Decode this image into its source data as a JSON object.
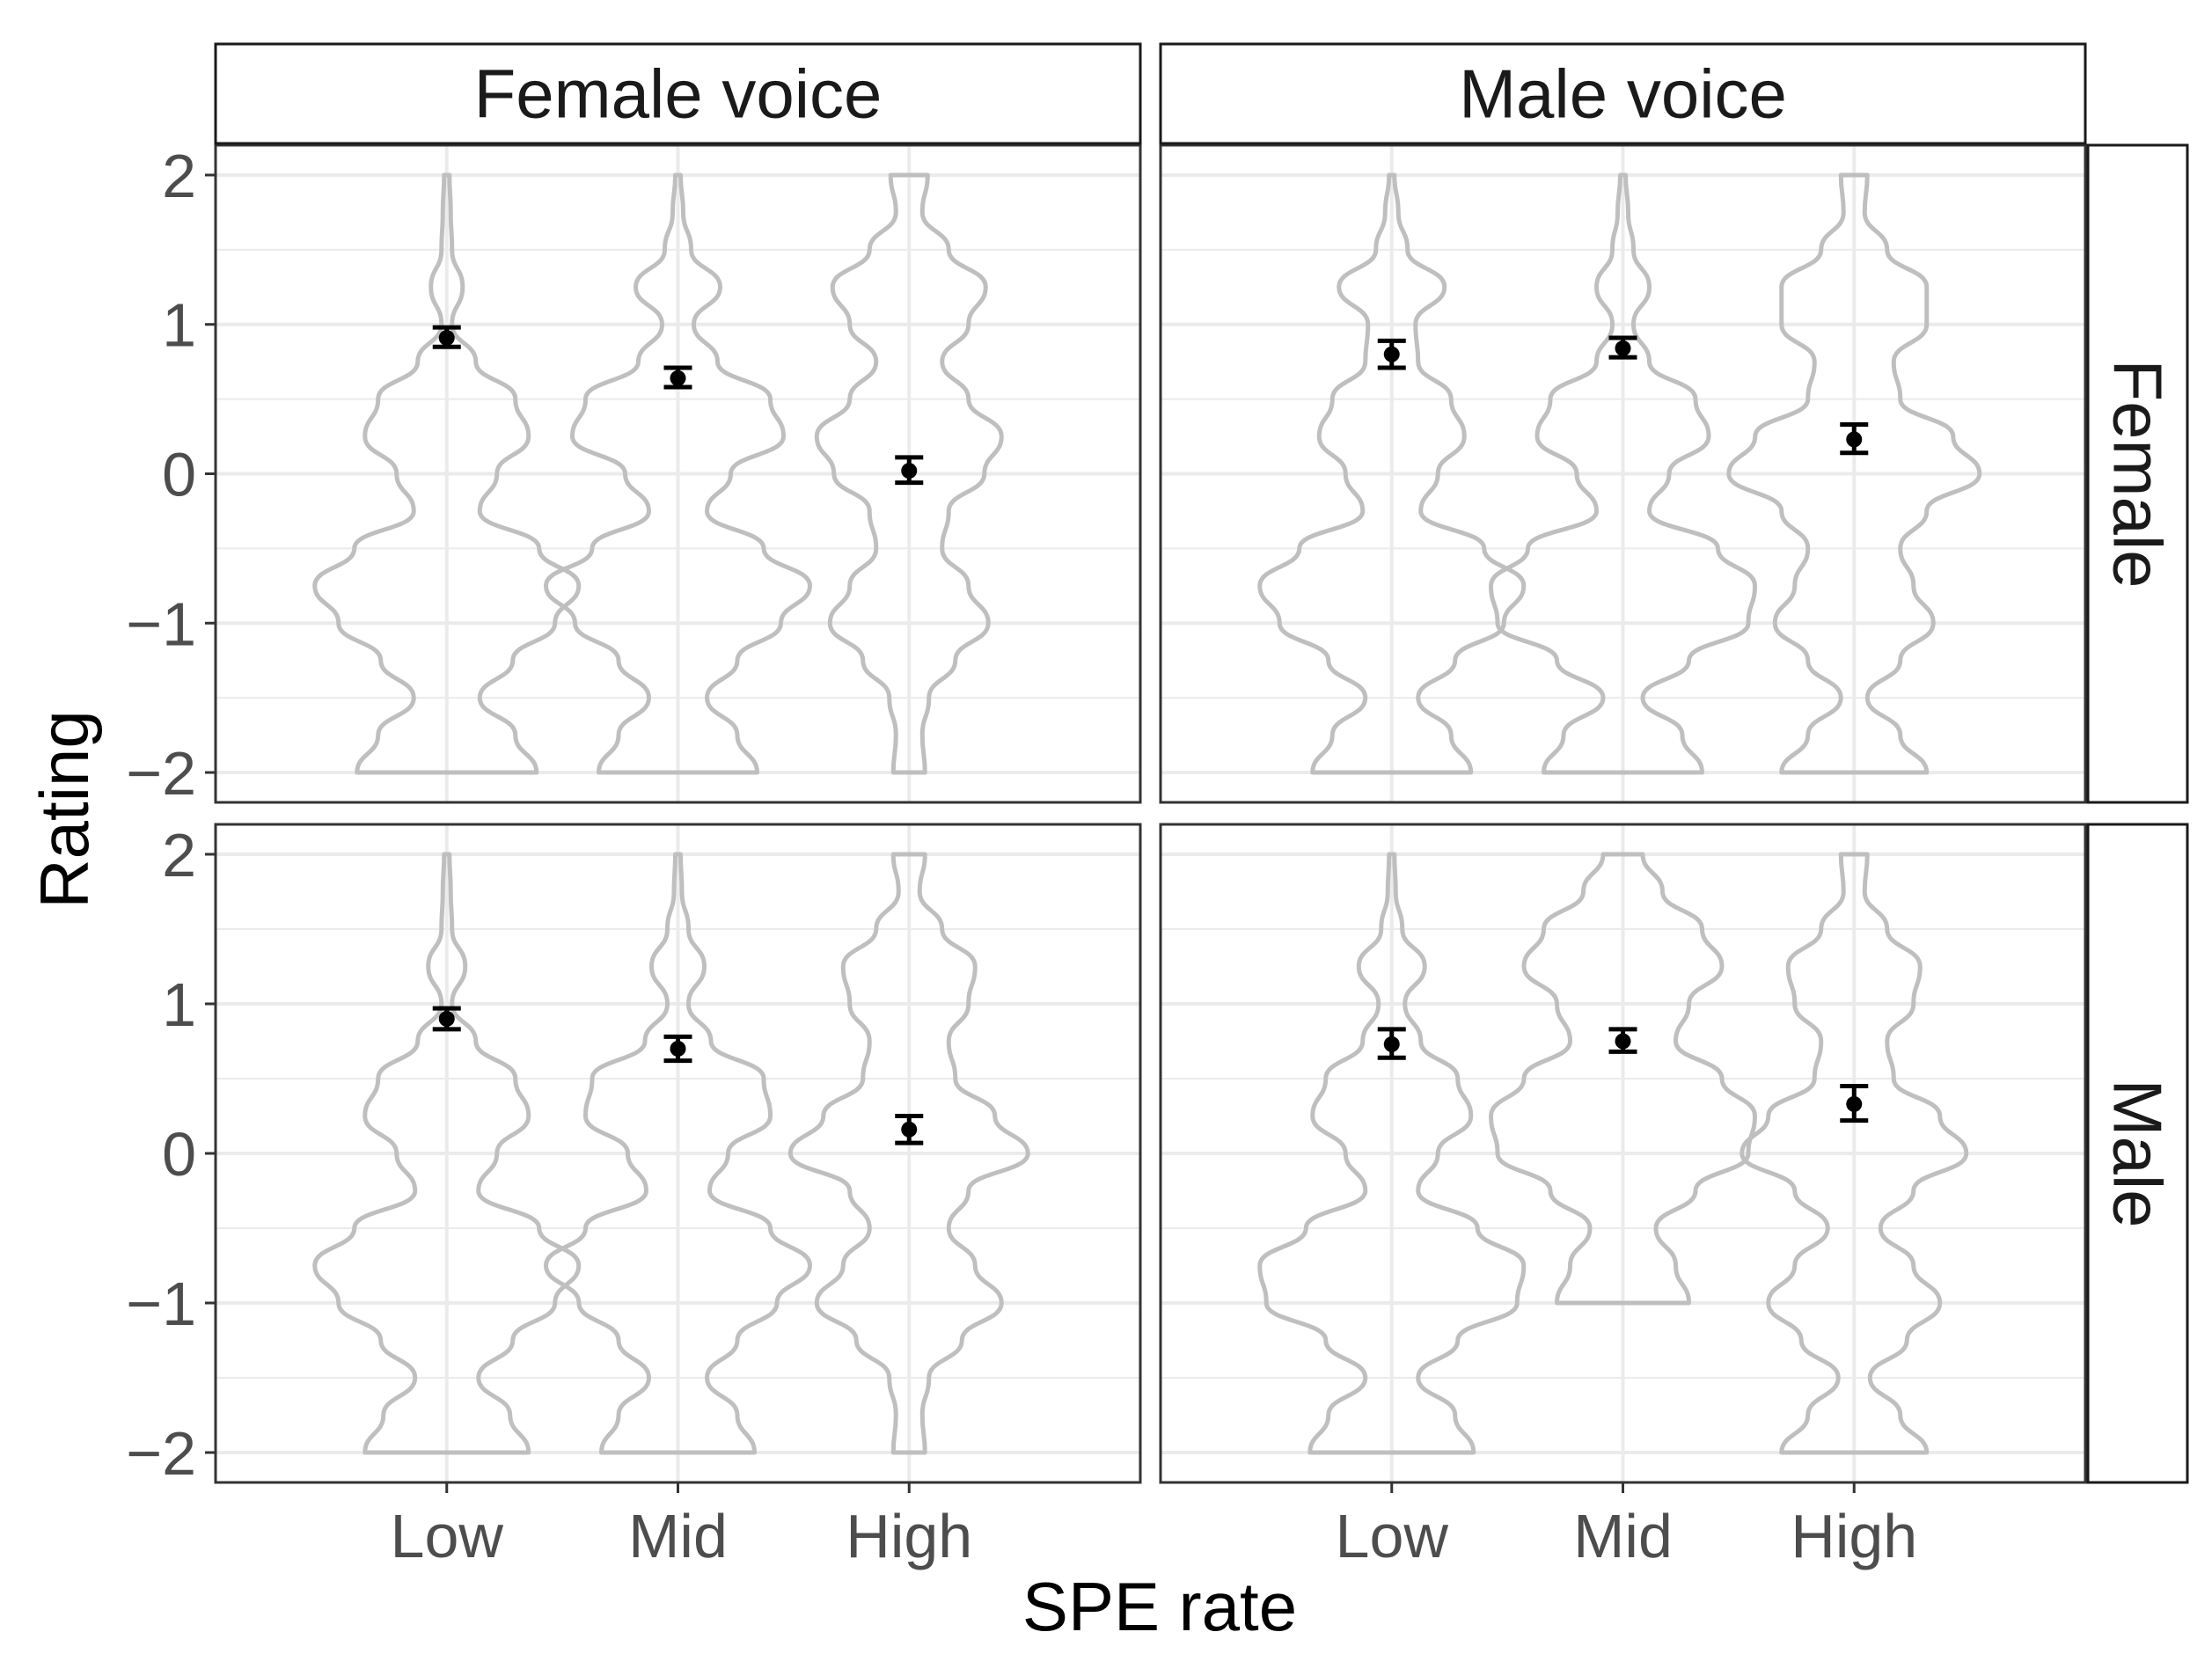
{
  "chart_data": {
    "type": "violin",
    "xlabel": "SPE rate",
    "ylabel": "Rating",
    "categories": [
      "Low",
      "Mid",
      "High"
    ],
    "ylim": [
      -2.2,
      2.2
    ],
    "yticks": [
      -2,
      -1,
      0,
      1,
      2
    ],
    "ytick_labels": [
      "−2",
      "−1",
      "0",
      "1",
      "2"
    ],
    "grid": true,
    "facet_columns": [
      "Female voice",
      "Male voice"
    ],
    "facet_rows": [
      "Female",
      "Male"
    ],
    "colors": {
      "violin": "#bfbfbf",
      "point": "#000000",
      "grid": "#ebebeb"
    },
    "panels": [
      {
        "column": "Female voice",
        "row": "Female",
        "mean": [
          0.91,
          0.64,
          0.02
        ],
        "ci": [
          [
            0.85,
            0.98
          ],
          [
            0.58,
            0.71
          ],
          [
            -0.06,
            0.11
          ]
        ],
        "violins": [
          {
            "range": [
              -2,
              2
            ],
            "density": [
              0.68,
              0.52,
              0.25,
              0.5,
              0.82,
              1.0,
              0.7,
              0.25,
              0.38,
              0.62,
              0.52,
              0.22,
              0.04,
              0.12,
              0.04,
              0.03,
              0.02
            ]
          },
          {
            "range": [
              -2,
              2
            ],
            "density": [
              0.6,
              0.45,
              0.22,
              0.45,
              0.78,
              1.0,
              0.65,
              0.22,
              0.4,
              0.8,
              0.7,
              0.3,
              0.12,
              0.32,
              0.1,
              0.04,
              0.02
            ]
          },
          {
            "range": [
              -2,
              2
            ],
            "density": [
              0.12,
              0.1,
              0.15,
              0.35,
              0.6,
              0.45,
              0.25,
              0.3,
              0.57,
              0.7,
              0.45,
              0.25,
              0.45,
              0.58,
              0.3,
              0.1,
              0.14
            ]
          }
        ]
      },
      {
        "column": "Male voice",
        "row": "Female",
        "mean": [
          0.8,
          0.84,
          0.23
        ],
        "ci": [
          [
            0.71,
            0.89
          ],
          [
            0.78,
            0.91
          ],
          [
            0.14,
            0.33
          ]
        ],
        "violins": [
          {
            "range": [
              -2,
              2
            ],
            "density": [
              0.6,
              0.45,
              0.2,
              0.48,
              0.85,
              1.0,
              0.7,
              0.22,
              0.35,
              0.55,
              0.45,
              0.2,
              0.18,
              0.4,
              0.12,
              0.05,
              0.02
            ]
          },
          {
            "range": [
              -2,
              2
            ],
            "density": [
              0.6,
              0.45,
              0.15,
              0.5,
              0.95,
              1.0,
              0.72,
              0.2,
              0.35,
              0.65,
              0.55,
              0.2,
              0.08,
              0.2,
              0.08,
              0.04,
              0.02
            ]
          },
          {
            "range": [
              -2,
              2
            ],
            "density": [
              0.55,
              0.35,
              0.1,
              0.35,
              0.6,
              0.45,
              0.35,
              0.55,
              0.95,
              0.75,
              0.35,
              0.3,
              0.55,
              0.55,
              0.25,
              0.08,
              0.1
            ]
          }
        ]
      },
      {
        "column": "Female voice",
        "row": "Male",
        "mean": [
          0.9,
          0.7,
          0.16
        ],
        "ci": [
          [
            0.83,
            0.97
          ],
          [
            0.62,
            0.78
          ],
          [
            0.07,
            0.25
          ]
        ],
        "violins": [
          {
            "range": [
              -2,
              2
            ],
            "density": [
              0.62,
              0.48,
              0.24,
              0.5,
              0.82,
              1.0,
              0.7,
              0.24,
              0.38,
              0.62,
              0.52,
              0.22,
              0.04,
              0.14,
              0.04,
              0.03,
              0.02
            ]
          },
          {
            "range": [
              -2,
              2
            ],
            "density": [
              0.58,
              0.45,
              0.22,
              0.45,
              0.75,
              1.0,
              0.7,
              0.24,
              0.38,
              0.7,
              0.65,
              0.25,
              0.08,
              0.2,
              0.08,
              0.03,
              0.02
            ]
          },
          {
            "range": [
              -2,
              2
            ],
            "density": [
              0.12,
              0.1,
              0.15,
              0.4,
              0.7,
              0.5,
              0.3,
              0.45,
              0.9,
              0.65,
              0.35,
              0.3,
              0.45,
              0.5,
              0.25,
              0.08,
              0.12
            ]
          }
        ]
      },
      {
        "column": "Male voice",
        "row": "Male",
        "mean": [
          0.73,
          0.75,
          0.33
        ],
        "ci": [
          [
            0.64,
            0.83
          ],
          [
            0.68,
            0.83
          ],
          [
            0.22,
            0.45
          ]
        ],
        "violins": [
          {
            "range": [
              -2,
              2
            ],
            "density": [
              0.62,
              0.48,
              0.2,
              0.5,
              0.95,
              1.0,
              0.65,
              0.2,
              0.35,
              0.6,
              0.5,
              0.22,
              0.1,
              0.25,
              0.08,
              0.03,
              0.02
            ]
          },
          {
            "range": [
              -1,
              2
            ],
            "density": [
              0.5,
              0.4,
              0.25,
              0.55,
              0.95,
              1.0,
              0.75,
              0.4,
              0.5,
              0.75,
              0.6,
              0.3,
              0.15
            ]
          },
          {
            "range": [
              -2,
              2
            ],
            "density": [
              0.55,
              0.35,
              0.12,
              0.4,
              0.65,
              0.45,
              0.2,
              0.45,
              0.85,
              0.65,
              0.3,
              0.25,
              0.45,
              0.5,
              0.25,
              0.08,
              0.1
            ]
          }
        ]
      }
    ]
  }
}
